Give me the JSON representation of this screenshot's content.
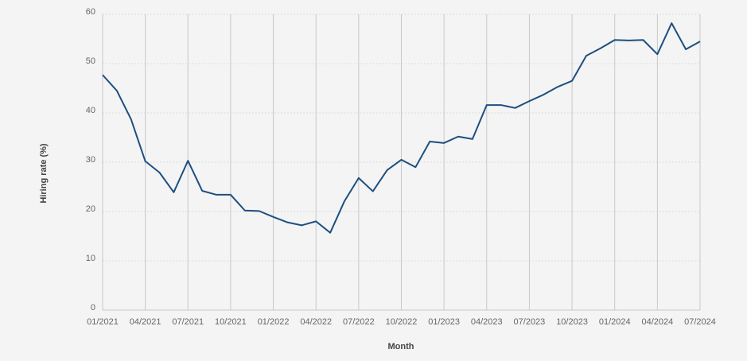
{
  "chart_data": {
    "type": "line",
    "x_label": "Month",
    "y_label": "Hiring rate (%)",
    "categories": [
      "01/2021",
      null,
      null,
      "04/2021",
      null,
      null,
      "07/2021",
      null,
      null,
      "10/2021",
      null,
      null,
      "01/2022",
      null,
      null,
      "04/2022",
      null,
      null,
      "07/2022",
      null,
      null,
      "10/2022",
      null,
      null,
      "01/2023",
      null,
      null,
      "04/2023",
      null,
      null,
      "07/2023",
      null,
      null,
      "10/2023",
      null,
      null,
      "01/2024",
      null,
      null,
      "04/2024",
      null,
      null,
      "07/2024"
    ],
    "series": [
      {
        "color": "#1d4f7f",
        "values": [
          47.7,
          44.5,
          38.7,
          30.2,
          27.9,
          23.9,
          30.3,
          24.2,
          23.4,
          23.4,
          20.2,
          20.1,
          18.9,
          17.8,
          17.2,
          18.0,
          15.7,
          22.1,
          26.8,
          24.1,
          28.4,
          30.5,
          29.0,
          34.2,
          33.9,
          35.2,
          34.7,
          41.6,
          41.6,
          41.0,
          42.4,
          43.7,
          45.3,
          46.5,
          51.6,
          53.1,
          54.8,
          54.7,
          54.8,
          51.9,
          58.2,
          52.9,
          54.5
        ]
      }
    ],
    "ylim": [
      0,
      60
    ],
    "yticks": [
      0,
      10,
      20,
      30,
      40,
      50,
      60
    ],
    "grid": true
  }
}
